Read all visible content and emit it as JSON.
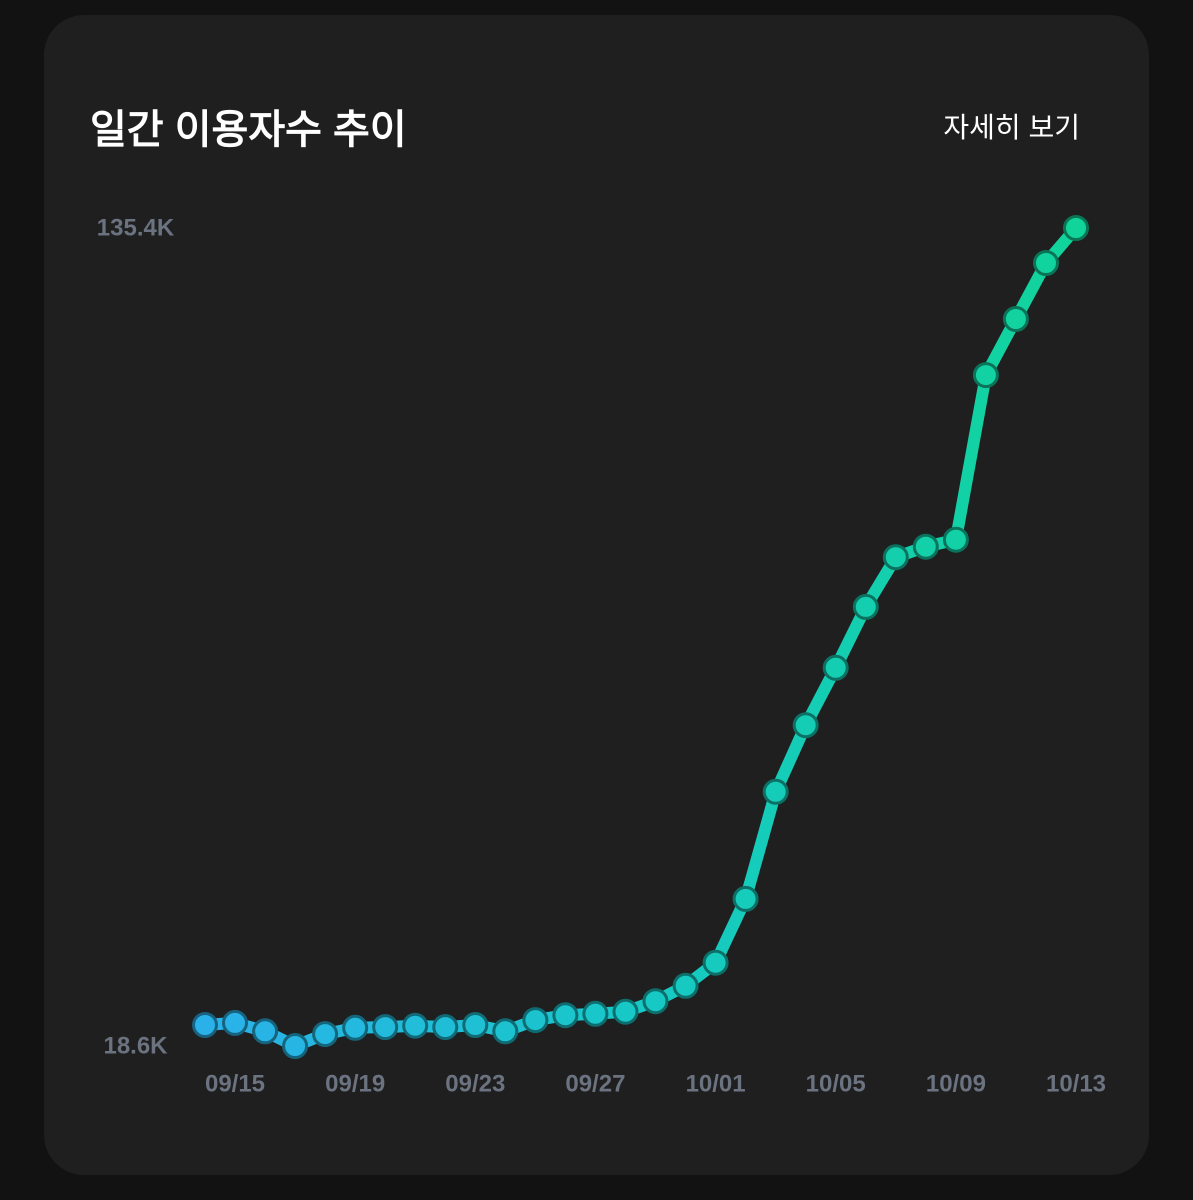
{
  "header": {
    "detail_link": "자세히 보기"
  },
  "chart_data": {
    "type": "line",
    "title": "일간 이용자수 추이",
    "x": [
      "09/14",
      "09/15",
      "09/16",
      "09/17",
      "09/18",
      "09/19",
      "09/20",
      "09/21",
      "09/22",
      "09/23",
      "09/24",
      "09/25",
      "09/26",
      "09/27",
      "09/28",
      "09/29",
      "09/30",
      "10/01",
      "10/02",
      "10/03",
      "10/04",
      "10/05",
      "10/06",
      "10/07",
      "10/08",
      "10/09",
      "10/10",
      "10/11",
      "10/12",
      "10/13"
    ],
    "y": [
      21.6,
      21.9,
      20.7,
      18.6,
      20.3,
      21.2,
      21.3,
      21.5,
      21.3,
      21.6,
      20.7,
      22.3,
      23.0,
      23.2,
      23.5,
      25.0,
      27.2,
      30.5,
      39.6,
      54.9,
      64.4,
      72.6,
      81.3,
      88.4,
      89.9,
      90.9,
      114.4,
      122.4,
      130.4,
      135.4
    ],
    "x_ticks": [
      "09/15",
      "09/19",
      "09/23",
      "09/27",
      "10/01",
      "10/05",
      "10/09",
      "10/13"
    ],
    "y_ticks": [
      {
        "value": 135.4,
        "label": "135.4K"
      },
      {
        "value": 18.6,
        "label": "18.6K"
      }
    ],
    "ylim": [
      18.6,
      135.4
    ],
    "grid": false,
    "legend": "none",
    "markers": true,
    "colors": {
      "line_gradient": [
        "#2bb1ea",
        "#17c9c6",
        "#11d49a"
      ],
      "axis_text": "#6b7280"
    }
  }
}
